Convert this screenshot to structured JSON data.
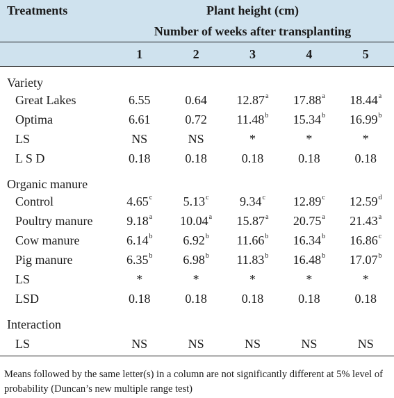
{
  "header": {
    "col0": "Treatments",
    "title": "Plant height (cm)",
    "subtitle": "Number of weeks after transplanting",
    "weeks": [
      "1",
      "2",
      "3",
      "4",
      "5"
    ]
  },
  "sections": [
    {
      "label": "Variety",
      "rows": [
        {
          "label": "Great Lakes",
          "cells": [
            {
              "v": "6.55",
              "s": ""
            },
            {
              "v": "0.64",
              "s": ""
            },
            {
              "v": "12.87",
              "s": "a"
            },
            {
              "v": "17.88",
              "s": "a"
            },
            {
              "v": "18.44",
              "s": "a"
            }
          ]
        },
        {
          "label": "Optima",
          "cells": [
            {
              "v": "6.61",
              "s": ""
            },
            {
              "v": "0.72",
              "s": ""
            },
            {
              "v": "11.48",
              "s": "b"
            },
            {
              "v": "15.34",
              "s": "b"
            },
            {
              "v": "16.99",
              "s": "b"
            }
          ]
        },
        {
          "label": "LS",
          "cells": [
            {
              "v": "NS",
              "s": ""
            },
            {
              "v": "NS",
              "s": ""
            },
            {
              "v": "*",
              "s": ""
            },
            {
              "v": "*",
              "s": ""
            },
            {
              "v": "*",
              "s": ""
            }
          ]
        },
        {
          "label": "L S D",
          "cells": [
            {
              "v": "0.18",
              "s": ""
            },
            {
              "v": "0.18",
              "s": ""
            },
            {
              "v": "0.18",
              "s": ""
            },
            {
              "v": "0.18",
              "s": ""
            },
            {
              "v": "0.18",
              "s": ""
            }
          ]
        }
      ]
    },
    {
      "label": "Organic manure",
      "rows": [
        {
          "label": "Control",
          "cells": [
            {
              "v": "4.65",
              "s": "c"
            },
            {
              "v": "5.13",
              "s": "c"
            },
            {
              "v": "9.34",
              "s": "c"
            },
            {
              "v": "12.89",
              "s": "c"
            },
            {
              "v": "12.59",
              "s": "d"
            }
          ]
        },
        {
          "label": "Poultry manure",
          "cells": [
            {
              "v": "9.18",
              "s": "a"
            },
            {
              "v": "10.04",
              "s": "a"
            },
            {
              "v": "15.87",
              "s": "a"
            },
            {
              "v": "20.75",
              "s": "a"
            },
            {
              "v": "21.43",
              "s": "a"
            }
          ]
        },
        {
          "label": "Cow manure",
          "cells": [
            {
              "v": "6.14",
              "s": "b"
            },
            {
              "v": "6.92",
              "s": "b"
            },
            {
              "v": "11.66",
              "s": "b"
            },
            {
              "v": "16.34",
              "s": "b"
            },
            {
              "v": "16.86",
              "s": "c"
            }
          ]
        },
        {
          "label": "Pig manure",
          "cells": [
            {
              "v": "6.35",
              "s": "b"
            },
            {
              "v": "6.98",
              "s": "b"
            },
            {
              "v": "11.83",
              "s": "b"
            },
            {
              "v": "16.48",
              "s": "b"
            },
            {
              "v": "17.07",
              "s": "b"
            }
          ]
        },
        {
          "label": "LS",
          "cells": [
            {
              "v": "*",
              "s": ""
            },
            {
              "v": "*",
              "s": ""
            },
            {
              "v": "*",
              "s": ""
            },
            {
              "v": "*",
              "s": ""
            },
            {
              "v": "*",
              "s": ""
            }
          ]
        },
        {
          "label": "LSD",
          "cells": [
            {
              "v": "0.18",
              "s": ""
            },
            {
              "v": "0.18",
              "s": ""
            },
            {
              "v": "0.18",
              "s": ""
            },
            {
              "v": "0.18",
              "s": ""
            },
            {
              "v": "0.18",
              "s": ""
            }
          ]
        }
      ]
    },
    {
      "label": "Interaction",
      "rows": [
        {
          "label": "LS",
          "cells": [
            {
              "v": "NS",
              "s": ""
            },
            {
              "v": "NS",
              "s": ""
            },
            {
              "v": "NS",
              "s": ""
            },
            {
              "v": "NS",
              "s": ""
            },
            {
              "v": "NS",
              "s": ""
            }
          ]
        }
      ]
    }
  ],
  "footnote": "Means followed by the same letter(s) in a column are not significantly different at 5% level of probability (Duncan’s new multiple range test)",
  "colors": {
    "header_bg": "#cfe2ee",
    "text": "#1a1a1a"
  }
}
